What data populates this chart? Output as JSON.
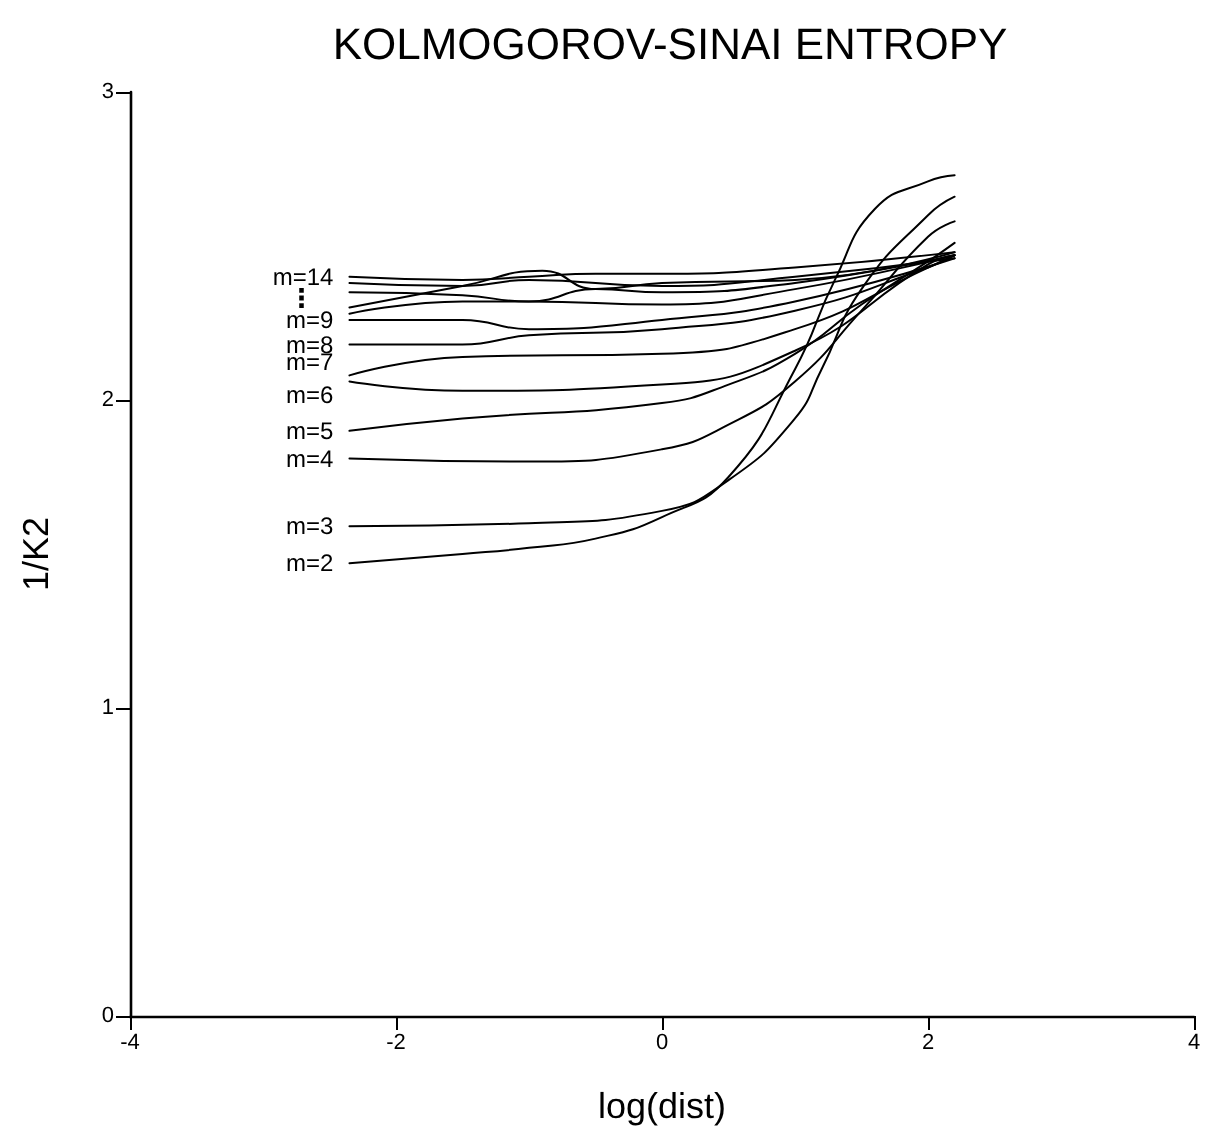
{
  "chart_data": {
    "type": "line",
    "title": "KOLMOGOROV-SINAI ENTROPY",
    "xlabel": "log(dist)",
    "ylabel": "1/K2",
    "xlim": [
      -4,
      4
    ],
    "xticks": [
      -4,
      -2,
      0,
      2,
      4
    ],
    "ylim": [
      0,
      3
    ],
    "yticks": [
      0,
      1,
      2,
      3
    ],
    "grid": false,
    "legend": false,
    "marker": "none",
    "line_style": "solid",
    "annotations": [
      "⋮"
    ],
    "series": [
      {
        "name": "m=2",
        "color": "#000000",
        "x": [
          -2.35,
          -1.5,
          -1,
          -0.5,
          0,
          0.5,
          1,
          1.3,
          1.6,
          2,
          2.2
        ],
        "values": [
          1.47,
          1.5,
          1.52,
          1.55,
          1.62,
          1.75,
          2.1,
          2.39,
          2.62,
          2.71,
          2.73
        ]
      },
      {
        "name": "m=3",
        "color": "#000000",
        "x": [
          -2.35,
          -1,
          0,
          0.5,
          1,
          1.2,
          1.5,
          2,
          2.2
        ],
        "values": [
          1.59,
          1.6,
          1.64,
          1.74,
          1.94,
          2.1,
          2.36,
          2.6,
          2.66
        ]
      },
      {
        "name": "m=4",
        "color": "#000000",
        "x": [
          -2.35,
          -1,
          0,
          0.5,
          1,
          1.5,
          2,
          2.2
        ],
        "values": [
          1.81,
          1.8,
          1.84,
          1.92,
          2.06,
          2.29,
          2.53,
          2.58
        ]
      },
      {
        "name": "m=5",
        "color": "#000000",
        "x": [
          -2.35,
          -1.5,
          0,
          0.5,
          1,
          1.5,
          2,
          2.2
        ],
        "values": [
          1.9,
          1.94,
          1.99,
          2.05,
          2.15,
          2.31,
          2.45,
          2.51
        ]
      },
      {
        "name": "m=6",
        "color": "#000000",
        "x": [
          -2.35,
          -1.5,
          0,
          1,
          2,
          2.2
        ],
        "values": [
          2.06,
          2.03,
          2.05,
          2.16,
          2.44,
          2.47
        ]
      },
      {
        "name": "m=7",
        "color": "#000000",
        "x": [
          -2.35,
          -1.5,
          0,
          1,
          2,
          2.2
        ],
        "values": [
          2.08,
          2.14,
          2.15,
          2.23,
          2.43,
          2.47
        ]
      },
      {
        "name": "m=8",
        "color": "#000000",
        "x": [
          -2.35,
          -1.5,
          -1,
          0,
          1,
          2,
          2.2
        ],
        "values": [
          2.18,
          2.18,
          2.21,
          2.23,
          2.29,
          2.43,
          2.47
        ]
      },
      {
        "name": "m=9",
        "color": "#000000",
        "x": [
          -2.35,
          -1.5,
          -1,
          0,
          1,
          2.2
        ],
        "values": [
          2.26,
          2.26,
          2.23,
          2.26,
          2.32,
          2.46
        ]
      },
      {
        "color": "#000000",
        "x": [
          -2.35,
          -1.5,
          -1,
          0,
          1,
          2.2
        ],
        "values": [
          2.28,
          2.32,
          2.32,
          2.31,
          2.36,
          2.47
        ]
      },
      {
        "color": "#000000",
        "x": [
          -2.35,
          -1.5,
          -0.9,
          -0.5,
          0,
          1,
          2.2
        ],
        "values": [
          2.3,
          2.37,
          2.42,
          2.36,
          2.38,
          2.39,
          2.48
        ]
      },
      {
        "color": "#000000",
        "x": [
          -2.35,
          -1.5,
          -1,
          -0.5,
          0,
          1,
          2.2
        ],
        "values": [
          2.35,
          2.34,
          2.32,
          2.36,
          2.35,
          2.38,
          2.47
        ]
      },
      {
        "color": "#000000",
        "x": [
          -2.35,
          -1.5,
          -1,
          0,
          1,
          2.2
        ],
        "values": [
          2.38,
          2.37,
          2.39,
          2.37,
          2.4,
          2.46
        ]
      },
      {
        "name": "m=14",
        "color": "#000000",
        "x": [
          -2.35,
          -1.5,
          -1,
          -0.5,
          0,
          1,
          2.2
        ],
        "values": [
          2.4,
          2.39,
          2.4,
          2.41,
          2.41,
          2.43,
          2.48
        ]
      }
    ]
  }
}
